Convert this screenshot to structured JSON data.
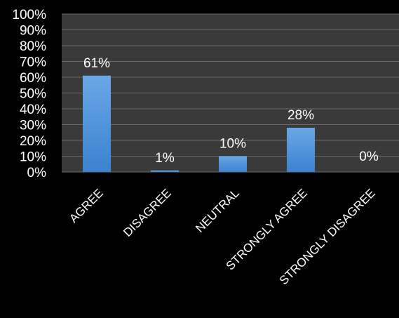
{
  "chart_data": {
    "type": "bar",
    "categories": [
      "AGREE",
      "DISAGREE",
      "NEUTRAL",
      "STRONGLY AGREE",
      "STRONGLY DISAGREE"
    ],
    "values": [
      61,
      1,
      10,
      28,
      0
    ],
    "data_labels": [
      "61%",
      "1%",
      "10%",
      "28%",
      "0%"
    ],
    "ylim": [
      0,
      100
    ],
    "y_ticks": [
      0,
      10,
      20,
      30,
      40,
      50,
      60,
      70,
      80,
      90,
      100
    ],
    "y_tick_labels": [
      "0%",
      "10%",
      "20%",
      "30%",
      "40%",
      "50%",
      "60%",
      "70%",
      "80%",
      "90%",
      "100%"
    ],
    "title": "",
    "xlabel": "",
    "ylabel": "",
    "grid": true,
    "legend": "none",
    "colors": {
      "background": "#000000",
      "plot_area": "#3a3a3a",
      "gridline": "#6a6a6a",
      "bar_top": "#6aa7e6",
      "bar_bottom": "#3b82d0",
      "text": "#ffffff"
    }
  }
}
